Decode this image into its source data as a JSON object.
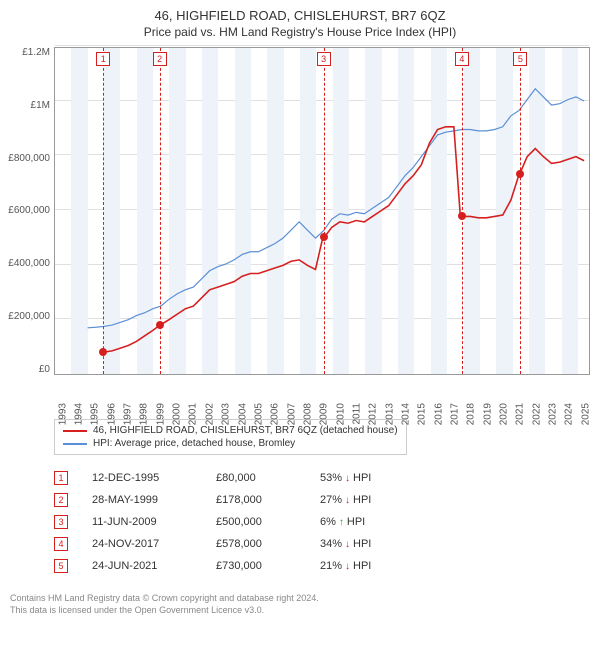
{
  "title": "46, HIGHFIELD ROAD, CHISLEHURST, BR7 6QZ",
  "subtitle": "Price paid vs. HM Land Registry's House Price Index (HPI)",
  "chart": {
    "type": "line",
    "background_color": "#ffffff",
    "grid_color": "#e0e0e0",
    "band_color": "#eef3fa",
    "border_color": "#999999",
    "x": {
      "min": 1993,
      "max": 2025.8,
      "tick_step": 1
    },
    "y": {
      "min": 0,
      "max": 1200000,
      "ticks": [
        "£0",
        "£200,000",
        "£400,000",
        "£600,000",
        "£800,000",
        "£1M",
        "£1.2M"
      ]
    },
    "series": [
      {
        "name": "46, HIGHFIELD ROAD, CHISLEHURST, BR7 6QZ (detached house)",
        "color": "#d62020",
        "width": 1.6,
        "points": [
          [
            1995.95,
            80000
          ],
          [
            1996.5,
            85000
          ],
          [
            1997.0,
            95000
          ],
          [
            1997.5,
            105000
          ],
          [
            1998.0,
            120000
          ],
          [
            1998.5,
            140000
          ],
          [
            1999.0,
            160000
          ],
          [
            1999.4,
            178000
          ],
          [
            2000.0,
            200000
          ],
          [
            2000.5,
            220000
          ],
          [
            2001.0,
            240000
          ],
          [
            2001.5,
            250000
          ],
          [
            2002.0,
            280000
          ],
          [
            2002.5,
            310000
          ],
          [
            2003.0,
            320000
          ],
          [
            2003.5,
            330000
          ],
          [
            2004.0,
            340000
          ],
          [
            2004.5,
            360000
          ],
          [
            2005.0,
            370000
          ],
          [
            2005.5,
            370000
          ],
          [
            2006.0,
            380000
          ],
          [
            2006.5,
            390000
          ],
          [
            2007.0,
            400000
          ],
          [
            2007.5,
            415000
          ],
          [
            2008.0,
            420000
          ],
          [
            2008.5,
            400000
          ],
          [
            2009.0,
            385000
          ],
          [
            2009.44,
            500000
          ],
          [
            2009.5,
            500000
          ],
          [
            2010.0,
            540000
          ],
          [
            2010.5,
            560000
          ],
          [
            2011.0,
            555000
          ],
          [
            2011.5,
            565000
          ],
          [
            2012.0,
            560000
          ],
          [
            2012.5,
            580000
          ],
          [
            2013.0,
            600000
          ],
          [
            2013.5,
            620000
          ],
          [
            2014.0,
            660000
          ],
          [
            2014.5,
            700000
          ],
          [
            2015.0,
            730000
          ],
          [
            2015.5,
            770000
          ],
          [
            2016.0,
            850000
          ],
          [
            2016.5,
            900000
          ],
          [
            2017.0,
            910000
          ],
          [
            2017.5,
            910000
          ],
          [
            2017.9,
            578000
          ],
          [
            2018.0,
            580000
          ],
          [
            2018.5,
            580000
          ],
          [
            2019.0,
            575000
          ],
          [
            2019.5,
            575000
          ],
          [
            2020.0,
            580000
          ],
          [
            2020.5,
            585000
          ],
          [
            2021.0,
            640000
          ],
          [
            2021.48,
            730000
          ],
          [
            2021.5,
            730000
          ],
          [
            2022.0,
            800000
          ],
          [
            2022.5,
            830000
          ],
          [
            2023.0,
            800000
          ],
          [
            2023.5,
            775000
          ],
          [
            2024.0,
            780000
          ],
          [
            2024.5,
            790000
          ],
          [
            2025.0,
            800000
          ],
          [
            2025.5,
            785000
          ]
        ]
      },
      {
        "name": "HPI: Average price, detached house, Bromley",
        "color": "#5b8fd6",
        "width": 1.2,
        "points": [
          [
            1995.0,
            170000
          ],
          [
            1995.5,
            172000
          ],
          [
            1996.0,
            175000
          ],
          [
            1996.5,
            180000
          ],
          [
            1997.0,
            190000
          ],
          [
            1997.5,
            200000
          ],
          [
            1998.0,
            215000
          ],
          [
            1998.5,
            225000
          ],
          [
            1999.0,
            240000
          ],
          [
            1999.5,
            250000
          ],
          [
            2000.0,
            275000
          ],
          [
            2000.5,
            295000
          ],
          [
            2001.0,
            310000
          ],
          [
            2001.5,
            320000
          ],
          [
            2002.0,
            350000
          ],
          [
            2002.5,
            380000
          ],
          [
            2003.0,
            395000
          ],
          [
            2003.5,
            405000
          ],
          [
            2004.0,
            420000
          ],
          [
            2004.5,
            440000
          ],
          [
            2005.0,
            450000
          ],
          [
            2005.5,
            450000
          ],
          [
            2006.0,
            465000
          ],
          [
            2006.5,
            480000
          ],
          [
            2007.0,
            500000
          ],
          [
            2007.5,
            530000
          ],
          [
            2008.0,
            560000
          ],
          [
            2008.5,
            530000
          ],
          [
            2009.0,
            500000
          ],
          [
            2009.5,
            528000
          ],
          [
            2010.0,
            570000
          ],
          [
            2010.5,
            590000
          ],
          [
            2011.0,
            585000
          ],
          [
            2011.5,
            595000
          ],
          [
            2012.0,
            590000
          ],
          [
            2012.5,
            610000
          ],
          [
            2013.0,
            630000
          ],
          [
            2013.5,
            650000
          ],
          [
            2014.0,
            690000
          ],
          [
            2014.5,
            730000
          ],
          [
            2015.0,
            760000
          ],
          [
            2015.5,
            800000
          ],
          [
            2016.0,
            840000
          ],
          [
            2016.5,
            880000
          ],
          [
            2017.0,
            890000
          ],
          [
            2017.5,
            895000
          ],
          [
            2018.0,
            900000
          ],
          [
            2018.5,
            900000
          ],
          [
            2019.0,
            895000
          ],
          [
            2019.5,
            895000
          ],
          [
            2020.0,
            900000
          ],
          [
            2020.5,
            910000
          ],
          [
            2021.0,
            950000
          ],
          [
            2021.5,
            970000
          ],
          [
            2022.0,
            1010000
          ],
          [
            2022.5,
            1050000
          ],
          [
            2023.0,
            1020000
          ],
          [
            2023.5,
            990000
          ],
          [
            2024.0,
            995000
          ],
          [
            2024.5,
            1010000
          ],
          [
            2025.0,
            1020000
          ],
          [
            2025.5,
            1005000
          ]
        ]
      }
    ],
    "markers": [
      {
        "id": "1",
        "x": 1995.95,
        "y": 80000,
        "color": "#d62020"
      },
      {
        "id": "2",
        "x": 1999.4,
        "y": 178000,
        "color": "#d62020"
      },
      {
        "id": "3",
        "x": 2009.44,
        "y": 500000,
        "color": "#d62020"
      },
      {
        "id": "4",
        "x": 2017.9,
        "y": 578000,
        "color": "#d62020"
      },
      {
        "id": "5",
        "x": 2021.48,
        "y": 730000,
        "color": "#d62020"
      }
    ]
  },
  "transactions": [
    {
      "id": "1",
      "date": "12-DEC-1995",
      "price": "£80,000",
      "diff_pct": "53%",
      "dir": "down",
      "suffix": "HPI"
    },
    {
      "id": "2",
      "date": "28-MAY-1999",
      "price": "£178,000",
      "diff_pct": "27%",
      "dir": "down",
      "suffix": "HPI"
    },
    {
      "id": "3",
      "date": "11-JUN-2009",
      "price": "£500,000",
      "diff_pct": "6%",
      "dir": "up",
      "suffix": "HPI"
    },
    {
      "id": "4",
      "date": "24-NOV-2017",
      "price": "£578,000",
      "diff_pct": "34%",
      "dir": "down",
      "suffix": "HPI"
    },
    {
      "id": "5",
      "date": "24-JUN-2021",
      "price": "£730,000",
      "diff_pct": "21%",
      "dir": "down",
      "suffix": "HPI"
    }
  ],
  "footer": {
    "line1": "Contains HM Land Registry data © Crown copyright and database right 2024.",
    "line2": "This data is licensed under the Open Government Licence v3.0."
  },
  "colors": {
    "marker_red": "#d62020",
    "arrow_down": "#d62020",
    "arrow_up": "#2e9e2e"
  }
}
